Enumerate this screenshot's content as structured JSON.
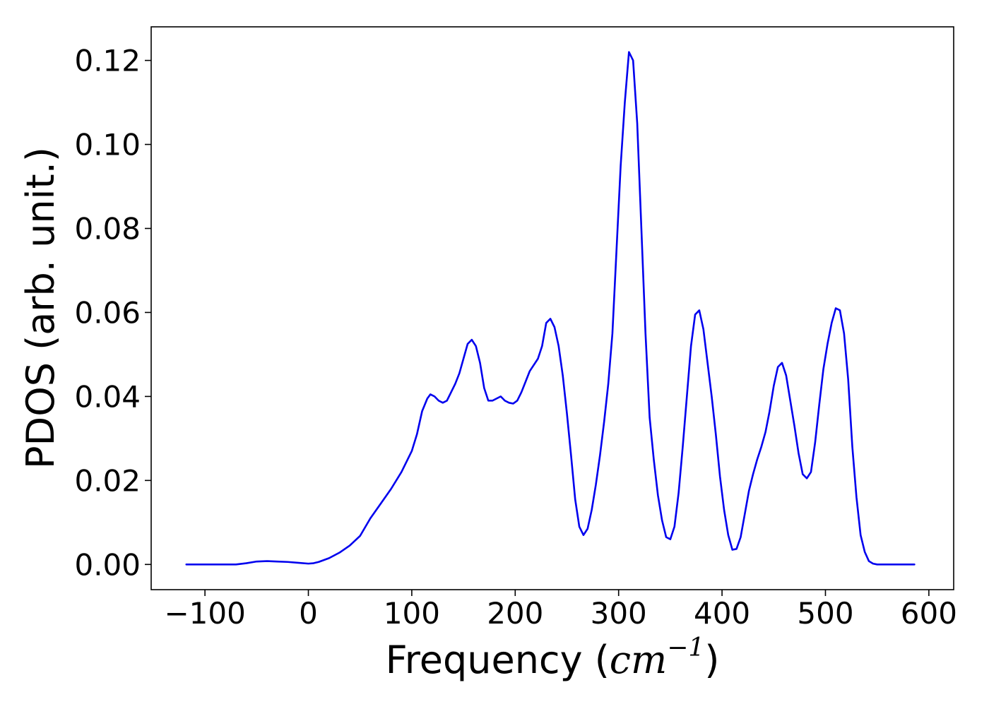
{
  "chart_data": {
    "type": "line",
    "title": "",
    "xlabel_prefix": "Frequency (",
    "xlabel_math": "cm",
    "xlabel_exponent": "−1",
    "xlabel_suffix": ")",
    "ylabel": "PDOS (arb. unit.)",
    "xlim": [
      -152,
      624
    ],
    "ylim": [
      -0.006,
      0.128
    ],
    "xticks": [
      -100,
      0,
      100,
      200,
      300,
      400,
      500,
      600
    ],
    "xtick_labels": [
      "−100",
      "0",
      "100",
      "200",
      "300",
      "400",
      "500",
      "600"
    ],
    "yticks": [
      0.0,
      0.02,
      0.04,
      0.06,
      0.08,
      0.1,
      0.12
    ],
    "ytick_labels": [
      "0.00",
      "0.02",
      "0.04",
      "0.06",
      "0.08",
      "0.10",
      "0.12"
    ],
    "grid": false,
    "legend": "none",
    "series": [
      {
        "color": "#0000ee",
        "x": [
          -118,
          -90,
          -70,
          -60,
          -50,
          -40,
          -30,
          -20,
          -10,
          0,
          5,
          10,
          20,
          30,
          40,
          50,
          60,
          70,
          80,
          90,
          100,
          105,
          110,
          115,
          118,
          122,
          126,
          130,
          134,
          138,
          142,
          146,
          150,
          154,
          158,
          162,
          166,
          170,
          174,
          178,
          182,
          186,
          190,
          194,
          198,
          202,
          206,
          210,
          214,
          218,
          222,
          226,
          230,
          234,
          238,
          242,
          246,
          250,
          254,
          258,
          262,
          266,
          270,
          274,
          278,
          282,
          286,
          290,
          294,
          298,
          302,
          306,
          310,
          314,
          318,
          322,
          326,
          330,
          334,
          338,
          342,
          346,
          350,
          354,
          358,
          362,
          366,
          370,
          374,
          378,
          382,
          386,
          390,
          394,
          398,
          402,
          406,
          410,
          414,
          418,
          422,
          426,
          430,
          434,
          438,
          442,
          446,
          450,
          454,
          458,
          462,
          466,
          470,
          474,
          478,
          482,
          486,
          490,
          494,
          498,
          502,
          506,
          510,
          514,
          518,
          522,
          526,
          530,
          534,
          538,
          542,
          546,
          550,
          560,
          586
        ],
        "y": [
          0.0,
          0.0,
          0.0,
          0.0003,
          0.0007,
          0.0008,
          0.0007,
          0.0006,
          0.0004,
          0.0002,
          0.0003,
          0.0006,
          0.0015,
          0.0028,
          0.0045,
          0.0068,
          0.011,
          0.0145,
          0.018,
          0.022,
          0.027,
          0.031,
          0.0365,
          0.0395,
          0.0405,
          0.04,
          0.039,
          0.0385,
          0.039,
          0.041,
          0.043,
          0.0455,
          0.049,
          0.0525,
          0.0535,
          0.052,
          0.048,
          0.042,
          0.039,
          0.039,
          0.0395,
          0.04,
          0.039,
          0.0385,
          0.0383,
          0.039,
          0.041,
          0.0435,
          0.046,
          0.0475,
          0.049,
          0.052,
          0.0575,
          0.0585,
          0.0565,
          0.052,
          0.045,
          0.036,
          0.026,
          0.0155,
          0.009,
          0.007,
          0.0085,
          0.013,
          0.019,
          0.026,
          0.034,
          0.043,
          0.055,
          0.075,
          0.095,
          0.11,
          0.122,
          0.12,
          0.105,
          0.08,
          0.055,
          0.035,
          0.025,
          0.0165,
          0.0105,
          0.0065,
          0.006,
          0.009,
          0.017,
          0.028,
          0.04,
          0.052,
          0.0595,
          0.0605,
          0.056,
          0.048,
          0.04,
          0.031,
          0.021,
          0.013,
          0.007,
          0.0035,
          0.0037,
          0.0065,
          0.012,
          0.0175,
          0.0215,
          0.025,
          0.028,
          0.0315,
          0.0365,
          0.0425,
          0.047,
          0.048,
          0.045,
          0.039,
          0.033,
          0.0265,
          0.0215,
          0.0205,
          0.022,
          0.029,
          0.038,
          0.0465,
          0.0525,
          0.0575,
          0.061,
          0.0605,
          0.055,
          0.044,
          0.028,
          0.016,
          0.007,
          0.003,
          0.0008,
          0.0002,
          0.0,
          0.0,
          0.0
        ]
      }
    ]
  }
}
